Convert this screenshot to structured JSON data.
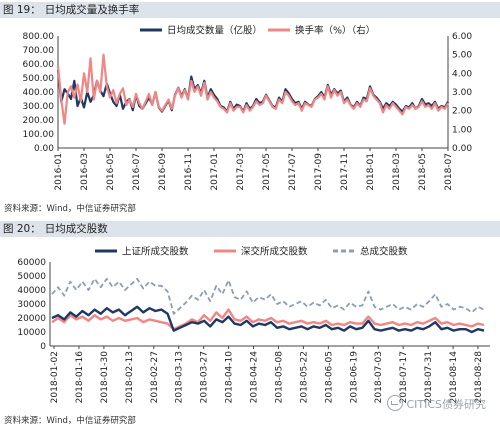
{
  "figures": [
    {
      "number": "图 19：",
      "title": "日均成交量及换手率",
      "source": "资料来源：Wind，中信证券研究部"
    },
    {
      "number": "图 20：",
      "title": "日均成交股数",
      "source": "资料来源：Wind，中信证券研究部"
    }
  ],
  "watermark": "CITICS债券研究",
  "colors": {
    "navy": "#1f3864",
    "salmon": "#f08784",
    "gray": "#8c9db5"
  },
  "chart_data": [
    {
      "type": "line",
      "title": "",
      "x_ticks": [
        "2016-01",
        "2016-03",
        "2016-05",
        "2016-07",
        "2016-09",
        "2016-11",
        "2017-01",
        "2017-03",
        "2017-05",
        "2017-07",
        "2017-09",
        "2017-11",
        "2018-01",
        "2018-03",
        "2018-05",
        "2018-07"
      ],
      "y_left": {
        "ylim": [
          0,
          800
        ],
        "ticks": [
          "0.00",
          "100.00",
          "200.00",
          "300.00",
          "400.00",
          "500.00",
          "600.00",
          "700.00",
          "800.00"
        ]
      },
      "y_right": {
        "ylim": [
          0,
          6
        ],
        "ticks": [
          "0.00",
          "1.00",
          "2.00",
          "3.00",
          "4.00",
          "5.00",
          "6.00"
        ]
      },
      "grid": false,
      "legend_position": "top-center",
      "series": [
        {
          "name": "日均成交数量（亿股）",
          "color": "#1f3864",
          "axis": "left",
          "values": [
            560,
            330,
            420,
            390,
            350,
            480,
            300,
            360,
            290,
            400,
            330,
            380,
            480,
            410,
            370,
            460,
            390,
            330,
            300,
            380,
            280,
            330,
            350,
            270,
            380,
            300,
            280,
            320,
            360,
            310,
            400,
            290,
            260,
            300,
            340,
            270,
            380,
            430,
            370,
            420,
            350,
            510,
            420,
            450,
            390,
            480,
            360,
            420,
            380,
            350,
            300,
            290,
            260,
            330,
            280,
            310,
            300,
            260,
            320,
            280,
            300,
            350,
            320,
            330,
            380,
            340,
            300,
            290,
            360,
            330,
            420,
            390,
            350,
            320,
            330,
            280,
            330,
            310,
            300,
            350,
            370,
            400,
            360,
            450,
            380,
            420,
            390,
            410,
            330,
            360,
            310,
            290,
            330,
            300,
            360,
            350,
            440,
            380,
            360,
            330,
            280,
            320,
            300,
            330,
            310,
            280,
            260,
            300,
            290,
            320,
            280,
            300,
            350,
            310,
            320,
            300,
            330,
            280,
            300,
            290,
            330
          ]
        },
        {
          "name": "换手率（%）（右）",
          "color": "#f08784",
          "axis": "right",
          "values": [
            4.4,
            2.6,
            1.3,
            3.0,
            3.3,
            2.7,
            3.4,
            2.5,
            4.0,
            3.0,
            4.8,
            2.6,
            3.6,
            3.0,
            5.0,
            3.3,
            2.7,
            3.1,
            2.4,
            2.9,
            3.2,
            2.3,
            2.6,
            2.2,
            2.9,
            2.4,
            2.1,
            2.5,
            2.9,
            2.3,
            3.0,
            2.2,
            2.0,
            2.3,
            2.6,
            2.1,
            2.8,
            3.2,
            2.7,
            3.1,
            2.6,
            3.6,
            3.0,
            3.3,
            2.8,
            3.5,
            2.6,
            3.0,
            2.7,
            2.5,
            2.2,
            2.1,
            1.9,
            2.4,
            2.0,
            2.2,
            2.2,
            1.9,
            2.3,
            2.0,
            2.2,
            2.5,
            2.3,
            2.4,
            2.8,
            2.5,
            2.2,
            2.1,
            2.6,
            2.4,
            3.0,
            2.8,
            2.5,
            2.3,
            2.4,
            2.0,
            2.4,
            2.3,
            2.2,
            2.6,
            2.7,
            2.9,
            2.6,
            3.3,
            2.7,
            3.1,
            2.8,
            3.0,
            2.4,
            2.6,
            2.3,
            2.1,
            2.4,
            2.2,
            2.6,
            2.5,
            3.2,
            2.8,
            2.6,
            2.4,
            1.9,
            2.3,
            2.1,
            2.4,
            2.2,
            2.0,
            1.8,
            2.2,
            2.1,
            2.3,
            2.1,
            2.2,
            2.5,
            2.2,
            2.3,
            2.1,
            2.4,
            2.0,
            2.2,
            2.1,
            2.4
          ]
        }
      ]
    },
    {
      "type": "line",
      "title": "",
      "x_ticks": [
        "2018-01-02",
        "2018-01-16",
        "2018-01-30",
        "2018-02-13",
        "2018-02-27",
        "2018-03-13",
        "2018-03-27",
        "2018-04-10",
        "2018-04-24",
        "2018-05-08",
        "2018-05-22",
        "2018-06-05",
        "2018-06-19",
        "2018-07-03",
        "2018-07-17",
        "2018-07-31",
        "2018-08-14",
        "2018-08-28"
      ],
      "y": {
        "ylim": [
          0,
          60000
        ],
        "ticks": [
          "0",
          "10000",
          "20000",
          "30000",
          "40000",
          "50000",
          "60000"
        ]
      },
      "grid": false,
      "legend_position": "top-center",
      "series": [
        {
          "name": "上证所成交股数",
          "color": "#1f3864",
          "dash": false,
          "values": [
            20000,
            22000,
            19000,
            24000,
            21000,
            25000,
            22000,
            26000,
            23000,
            27000,
            24000,
            26000,
            22000,
            25000,
            28000,
            24000,
            27000,
            25000,
            26000,
            23000,
            11000,
            13000,
            15000,
            17000,
            16000,
            18000,
            14000,
            19000,
            17000,
            21000,
            16000,
            15000,
            18000,
            14000,
            16000,
            15000,
            17000,
            13000,
            14000,
            12000,
            13000,
            14000,
            12000,
            14000,
            13000,
            15000,
            12000,
            13000,
            11000,
            14000,
            12000,
            13000,
            18000,
            12000,
            11000,
            12000,
            13000,
            11000,
            12000,
            11000,
            13000,
            12000,
            14000,
            17000,
            12000,
            13000,
            11000,
            12000,
            12000,
            10000,
            12000,
            11000
          ]
        },
        {
          "name": "深交所成交股数",
          "color": "#f08784",
          "dash": false,
          "values": [
            17000,
            20000,
            17000,
            22000,
            19000,
            21000,
            18000,
            22000,
            19000,
            21000,
            18000,
            20000,
            18000,
            19000,
            20000,
            17000,
            19000,
            18000,
            17000,
            16000,
            12000,
            14000,
            16000,
            19000,
            17000,
            22000,
            18000,
            24000,
            20000,
            26000,
            19000,
            18000,
            21000,
            17000,
            19000,
            18000,
            20000,
            17000,
            18000,
            16000,
            17000,
            18000,
            16000,
            17000,
            16000,
            18000,
            15000,
            16000,
            15000,
            17000,
            16000,
            16000,
            21000,
            16000,
            15000,
            16000,
            17000,
            15000,
            16000,
            15000,
            17000,
            16000,
            18000,
            20000,
            16000,
            17000,
            15000,
            16000,
            15000,
            14000,
            16000,
            15000
          ]
        },
        {
          "name": "总成交股数",
          "color": "#8c9db5",
          "dash": true,
          "values": [
            37000,
            42000,
            36000,
            46000,
            40000,
            46000,
            40000,
            48000,
            42000,
            48000,
            42000,
            46000,
            40000,
            44000,
            48000,
            41000,
            46000,
            43000,
            43000,
            39000,
            23000,
            27000,
            31000,
            36000,
            33000,
            40000,
            32000,
            43000,
            37000,
            47000,
            35000,
            33000,
            39000,
            31000,
            35000,
            33000,
            37000,
            30000,
            32000,
            28000,
            30000,
            32000,
            28000,
            31000,
            29000,
            33000,
            27000,
            29000,
            26000,
            31000,
            28000,
            29000,
            39000,
            28000,
            26000,
            28000,
            30000,
            26000,
            28000,
            26000,
            30000,
            28000,
            32000,
            37000,
            28000,
            30000,
            26000,
            28000,
            27000,
            24000,
            28000,
            26000
          ]
        }
      ]
    }
  ]
}
